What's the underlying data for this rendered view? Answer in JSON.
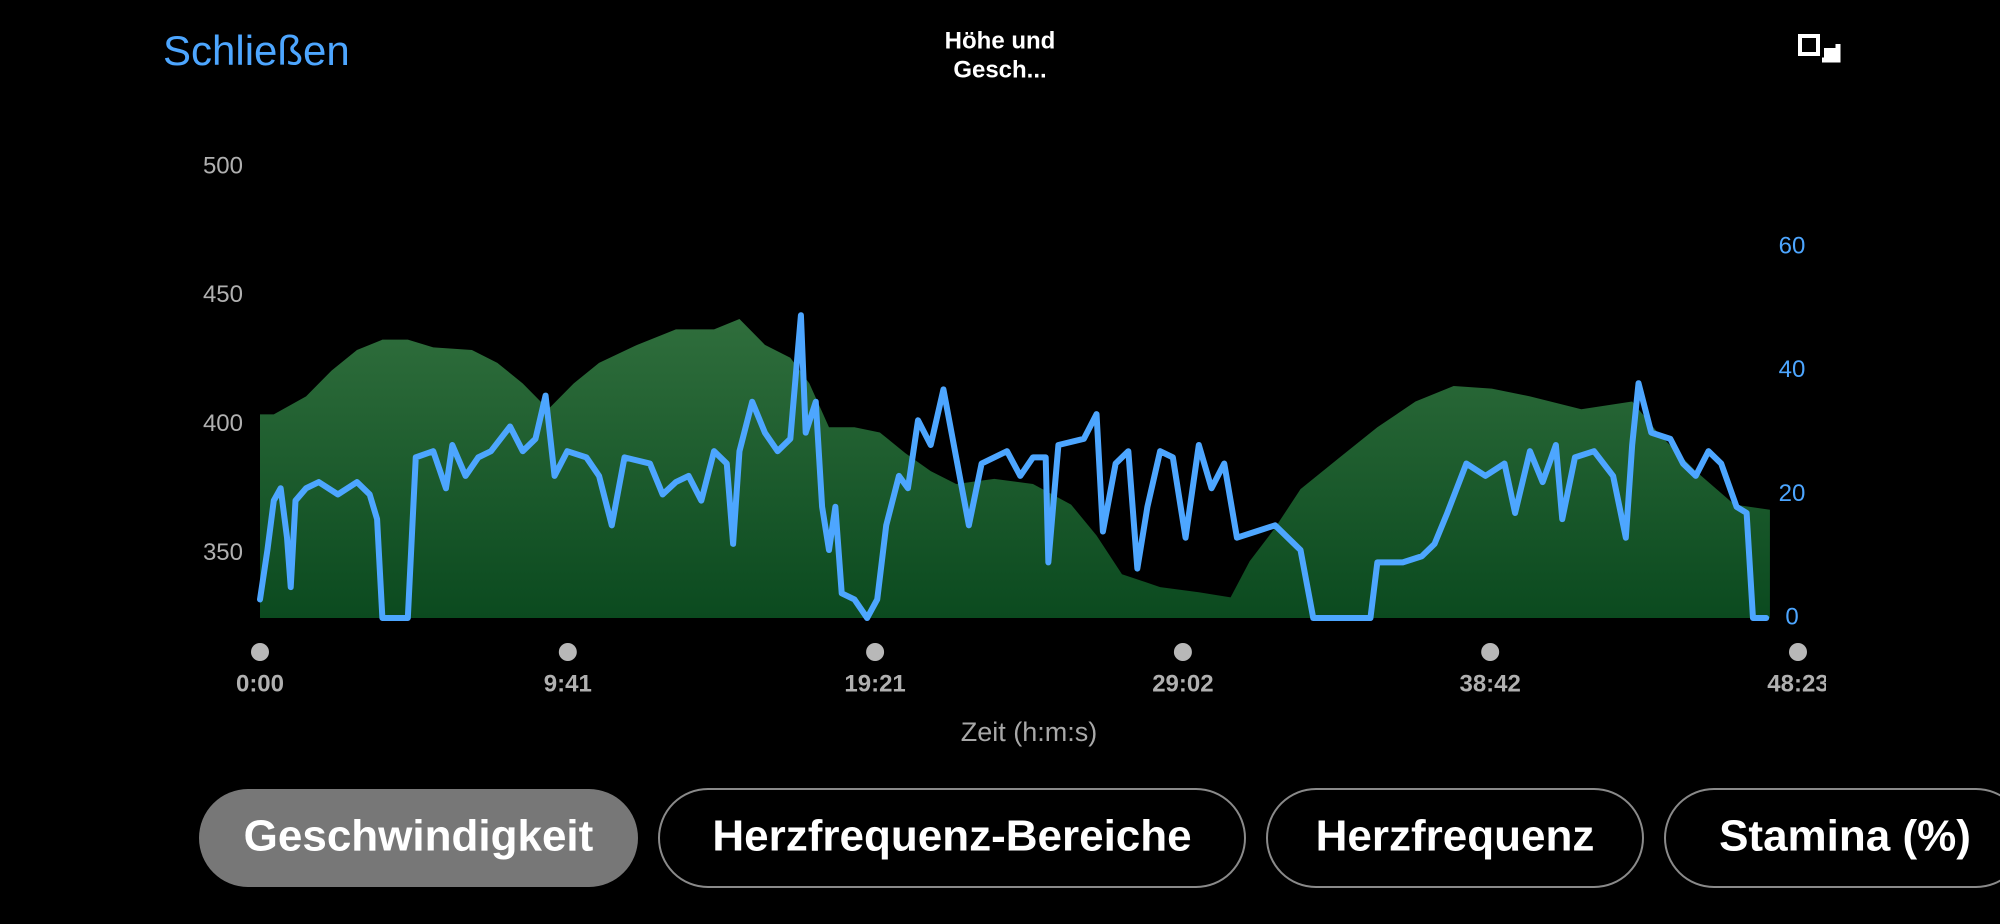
{
  "header": {
    "close": "Schließen",
    "title": [
      "Höhe und",
      "Gesch..."
    ]
  },
  "chart_data": {
    "type": "area-line",
    "xlabel": "Zeit (h:m:s)",
    "xlim": [
      0,
      2903
    ],
    "xticks": [
      {
        "value": 0,
        "label": "0:00"
      },
      {
        "value": 581,
        "label": "9:41"
      },
      {
        "value": 1161,
        "label": "19:21"
      },
      {
        "value": 1742,
        "label": "29:02"
      },
      {
        "value": 2322,
        "label": "38:42"
      },
      {
        "value": 2903,
        "label": "48:23"
      }
    ],
    "ylim": [
      325,
      500
    ],
    "yticks": [
      350,
      400,
      450,
      500
    ],
    "y2lim": [
      0,
      73
    ],
    "y2ticks": [
      0,
      20,
      40,
      60
    ],
    "y2color": "#4da6ff",
    "grid": false,
    "series": [
      {
        "type": "area",
        "color": "#2d6a39",
        "axis": "y",
        "x": [
          0,
          26,
          87,
          135,
          183,
          231,
          279,
          327,
          400,
          448,
          496,
          544,
          592,
          640,
          712,
          785,
          857,
          905,
          953,
          1001,
          1037,
          1074,
          1122,
          1170,
          1218,
          1266,
          1314,
          1386,
          1459,
          1531,
          1579,
          1627,
          1699,
          1772,
          1832,
          1868,
          1916,
          1964,
          2036,
          2109,
          2181,
          2253,
          2325,
          2397,
          2494,
          2590,
          2638,
          2710,
          2783,
          2850
        ],
        "values": [
          404,
          404,
          411,
          421,
          429,
          433,
          433,
          430,
          429,
          424,
          416,
          406,
          416,
          424,
          431,
          437,
          437,
          441,
          431,
          426,
          416,
          399,
          399,
          397,
          389,
          382,
          377,
          379,
          377,
          369,
          357,
          342,
          337,
          335,
          333,
          347,
          360,
          375,
          387,
          399,
          409,
          415,
          414,
          411,
          406,
          409,
          397,
          382,
          369,
          367
        ]
      },
      {
        "type": "line",
        "color": "#4da6ff",
        "axis": "y2",
        "x": [
          0,
          14,
          26,
          39,
          51,
          58,
          67,
          87,
          111,
          147,
          183,
          207,
          221,
          231,
          279,
          294,
          327,
          351,
          363,
          388,
          412,
          436,
          472,
          496,
          520,
          539,
          556,
          580,
          616,
          640,
          664,
          688,
          736,
          760,
          785,
          809,
          833,
          857,
          881,
          893,
          905,
          929,
          953,
          977,
          1001,
          1021,
          1030,
          1049,
          1061,
          1074,
          1086,
          1098,
          1122,
          1146,
          1165,
          1182,
          1206,
          1223,
          1242,
          1266,
          1290,
          1314,
          1338,
          1362,
          1410,
          1435,
          1459,
          1483,
          1488,
          1507,
          1555,
          1579,
          1591,
          1615,
          1639,
          1656,
          1675,
          1699,
          1723,
          1747,
          1772,
          1796,
          1820,
          1844,
          1880,
          1916,
          1940,
          1964,
          1988,
          2036,
          2096,
          2109,
          2157,
          2193,
          2217,
          2241,
          2277,
          2313,
          2349,
          2369,
          2397,
          2421,
          2446,
          2458,
          2482,
          2518,
          2554,
          2578,
          2590,
          2602,
          2626,
          2662,
          2686,
          2710,
          2734,
          2758,
          2787,
          2806,
          2818,
          2843
        ],
        "values": [
          3,
          11,
          19,
          21,
          13,
          5,
          19,
          21,
          22,
          20,
          22,
          20,
          16,
          0,
          0,
          26,
          27,
          21,
          28,
          23,
          26,
          27,
          31,
          27,
          29,
          36,
          23,
          27,
          26,
          23,
          15,
          26,
          25,
          20,
          22,
          23,
          19,
          27,
          25,
          12,
          27,
          35,
          30,
          27,
          29,
          49,
          30,
          35,
          18,
          11,
          18,
          4,
          3,
          0,
          3,
          15,
          23,
          21,
          32,
          28,
          37,
          26,
          15,
          25,
          27,
          23,
          26,
          26,
          9,
          28,
          29,
          33,
          14,
          25,
          27,
          8,
          18,
          27,
          26,
          13,
          28,
          21,
          25,
          13,
          14,
          15,
          13,
          11,
          0,
          0,
          0,
          9,
          9,
          10,
          12,
          17,
          25,
          23,
          25,
          17,
          27,
          22,
          28,
          16,
          26,
          27,
          23,
          13,
          28,
          38,
          30,
          29,
          25,
          23,
          27,
          25,
          18,
          17,
          0,
          0
        ]
      }
    ]
  },
  "tabs": {
    "selected": 0,
    "labels": [
      "Geschwindigkeit",
      "Herzfrequenz-Bereiche",
      "Herzfrequenz",
      "Stamina (%)"
    ]
  }
}
